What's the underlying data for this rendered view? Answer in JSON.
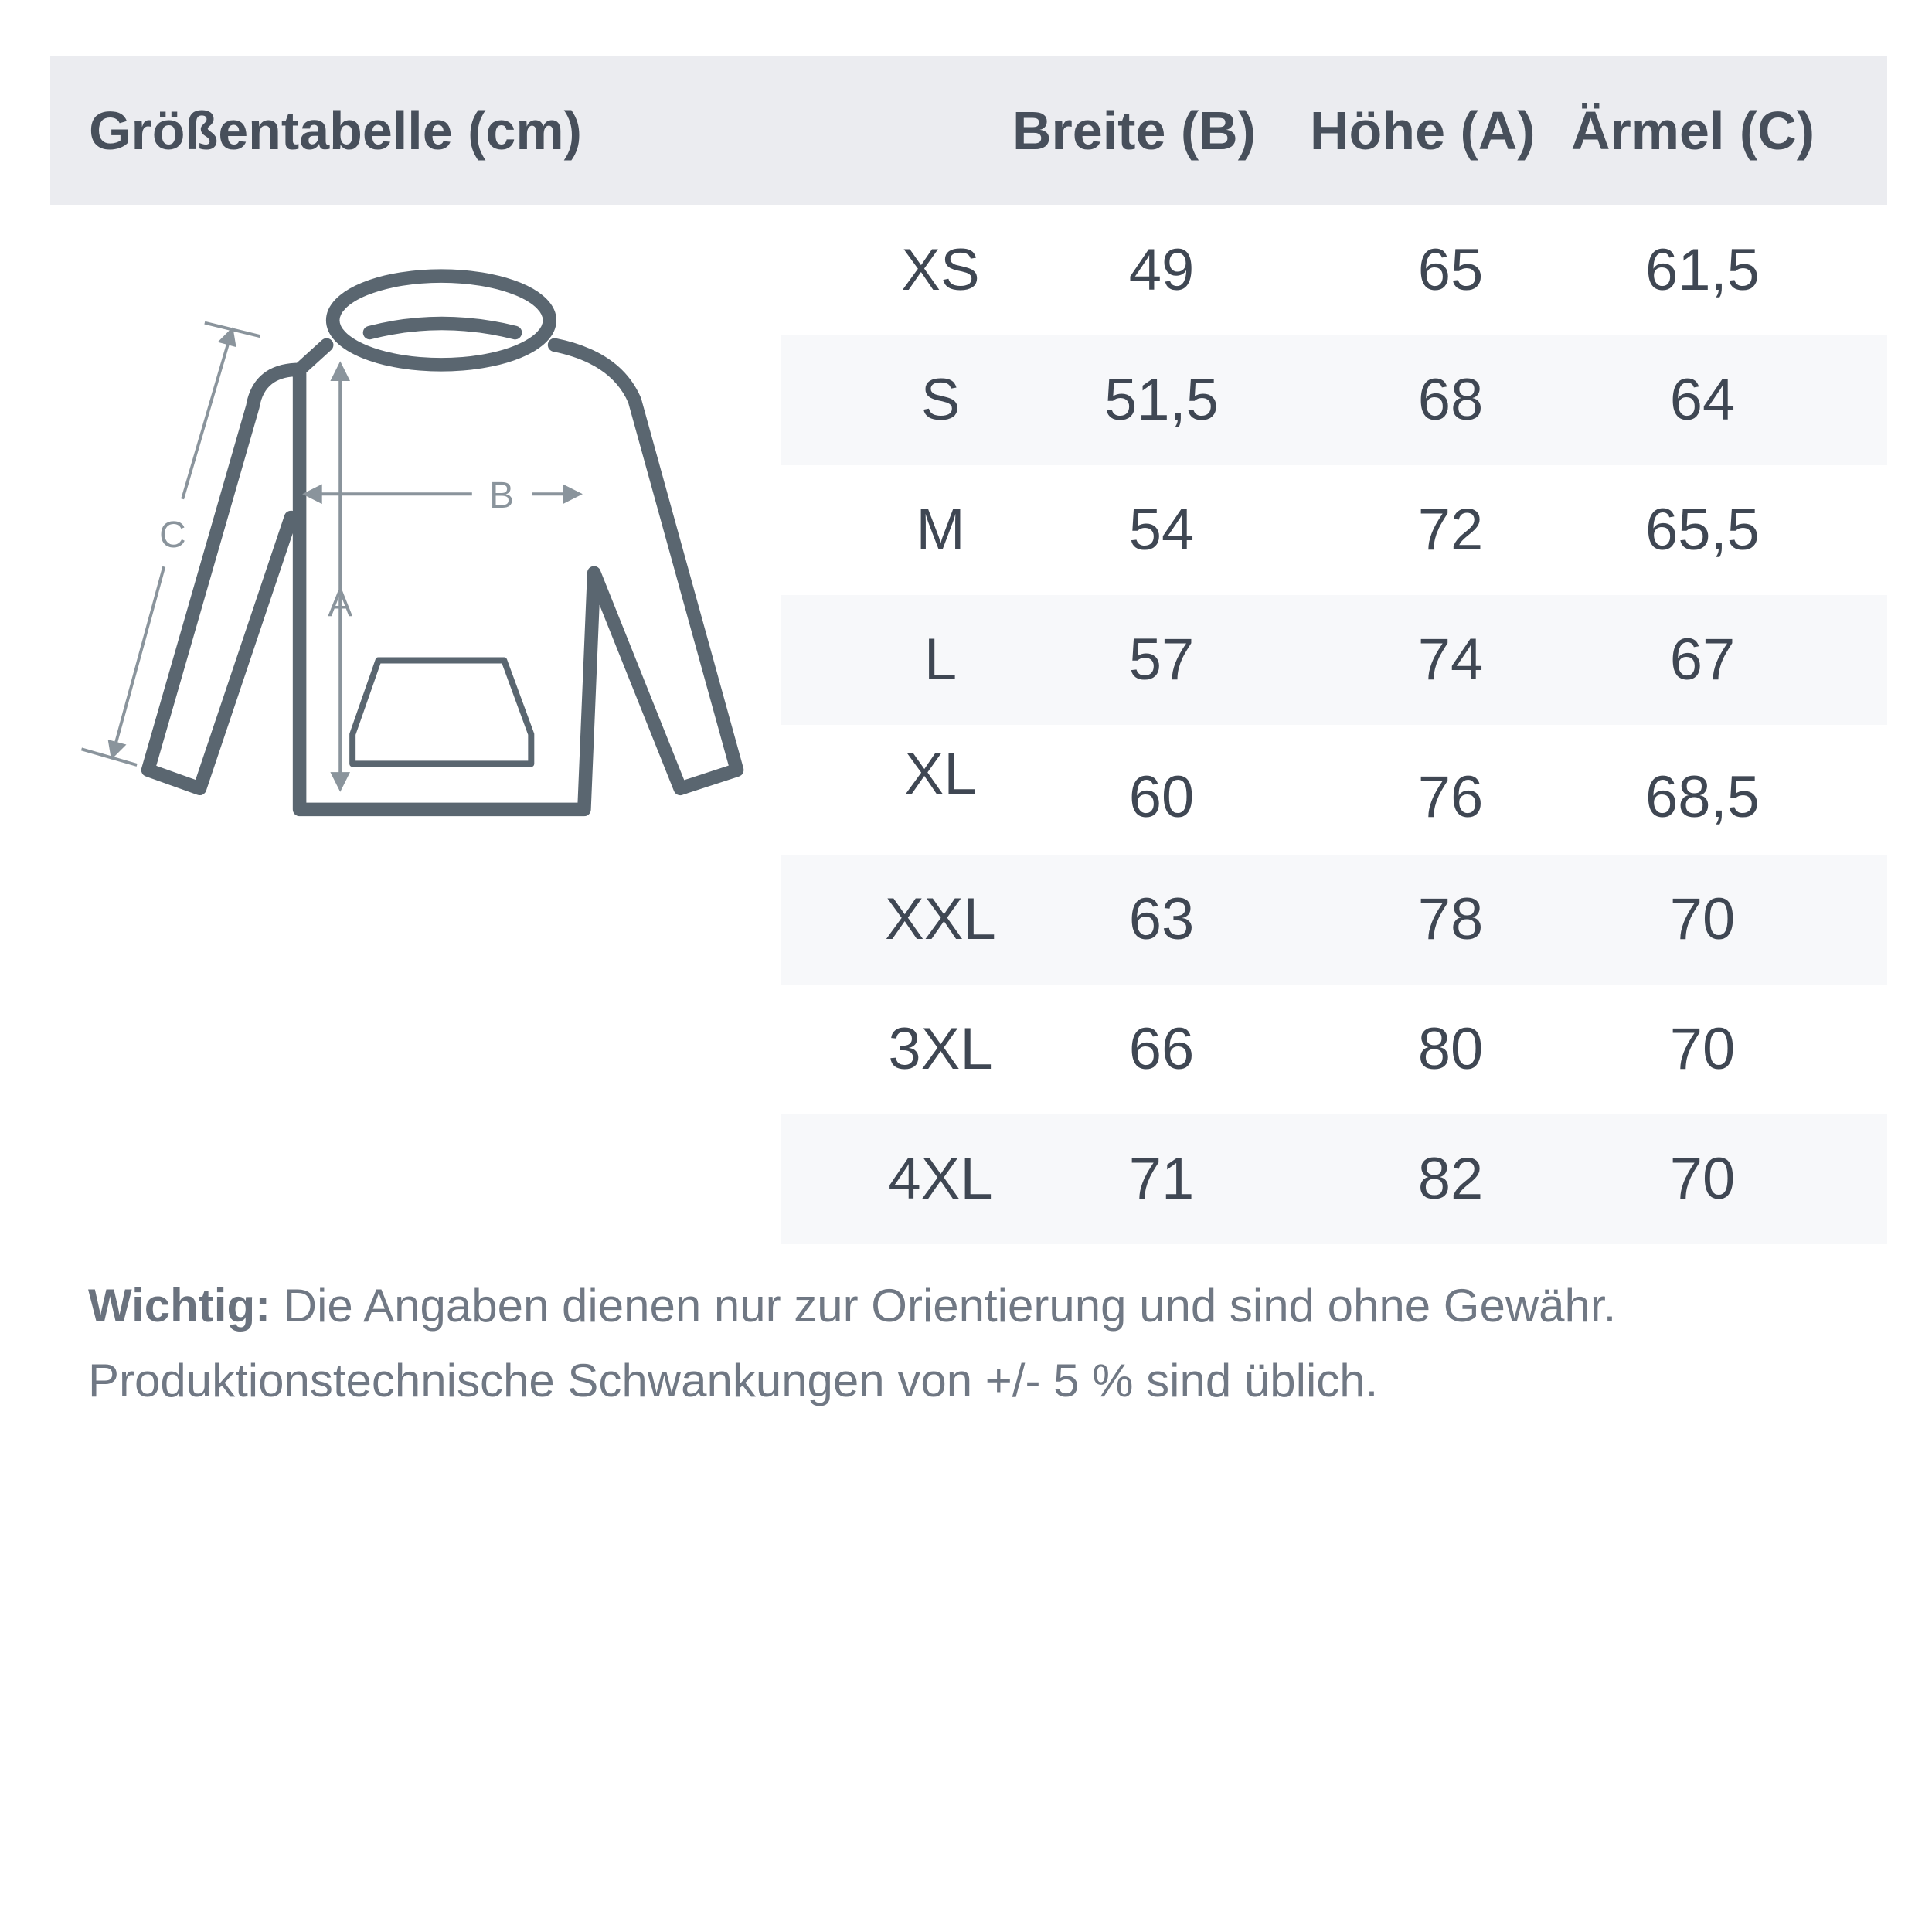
{
  "header": {
    "title": "Größentabelle (cm)",
    "col_b": "Breite (B)",
    "col_a": "Höhe (A)",
    "col_c": "Ärmel (C)"
  },
  "table": {
    "rows": [
      {
        "size": "XS",
        "b": "49",
        "a": "65",
        "c": "61,5"
      },
      {
        "size": "S",
        "b": "51,5",
        "a": "68",
        "c": "64"
      },
      {
        "size": "M",
        "b": "54",
        "a": "72",
        "c": "65,5"
      },
      {
        "size": "L",
        "b": "57",
        "a": "74",
        "c": "67"
      },
      {
        "size": "XL",
        "b": "60",
        "a": "76",
        "c": "68,5"
      },
      {
        "size": "XXL",
        "b": "63",
        "a": "78",
        "c": "70"
      },
      {
        "size": "3XL",
        "b": "66",
        "a": "80",
        "c": "70"
      },
      {
        "size": "4XL",
        "b": "71",
        "a": "82",
        "c": "70"
      }
    ]
  },
  "diagram": {
    "label_a": "A",
    "label_b": "B",
    "label_c": "C",
    "outline_color": "#5a6670",
    "measure_color": "#8a949c"
  },
  "note": {
    "bold": "Wichtig:",
    "line1": "Die Angaben dienen nur zur Orientierung und sind ohne Gewähr.",
    "line2": "Produktionstechnische Schwankungen von +/- 5 % sind üblich."
  }
}
